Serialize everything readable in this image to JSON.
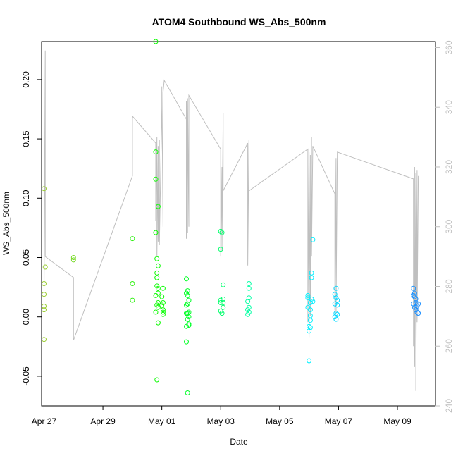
{
  "chart_data": {
    "type": "scatter",
    "title": "ATOM4 Southbound WS_Abs_500nm",
    "xlabel": "Date",
    "ylabel": "WS_Abs_500nm",
    "xlim": [
      "2017-04-26T22:00",
      "2017-05-10T07:00"
    ],
    "ylim": [
      -0.075,
      0.232
    ],
    "y2lim": [
      240,
      362
    ],
    "x_ticks": [
      {
        "date": "2017-04-27",
        "label": "Apr 27"
      },
      {
        "date": "2017-04-29",
        "label": "Apr 29"
      },
      {
        "date": "2017-05-01",
        "label": "May 01"
      },
      {
        "date": "2017-05-03",
        "label": "May 03"
      },
      {
        "date": "2017-05-05",
        "label": "May 05"
      },
      {
        "date": "2017-05-07",
        "label": "May 07"
      },
      {
        "date": "2017-05-09",
        "label": "May 09"
      }
    ],
    "y_ticks": [
      -0.05,
      0.0,
      0.05,
      0.1,
      0.15,
      0.2
    ],
    "y_tick_labels": [
      "-0.05",
      "0.00",
      "0.05",
      "0.10",
      "0.15",
      "0.20"
    ],
    "y2_ticks": [
      240,
      260,
      280,
      300,
      320,
      340,
      360
    ],
    "y2_tick_labels": [
      "240",
      "260",
      "280",
      "300",
      "320",
      "340",
      "360"
    ],
    "points": [
      {
        "t": "2017-04-27T00:00",
        "y": 0.108
      },
      {
        "t": "2017-04-27T00:00",
        "y": 0.028
      },
      {
        "t": "2017-04-27T00:00",
        "y": 0.019
      },
      {
        "t": "2017-04-27T00:00",
        "y": 0.009
      },
      {
        "t": "2017-04-27T00:00",
        "y": 0.006
      },
      {
        "t": "2017-04-27T00:00",
        "y": -0.019
      },
      {
        "t": "2017-04-27T01:00",
        "y": 0.042
      },
      {
        "t": "2017-04-28T00:00",
        "y": 0.05
      },
      {
        "t": "2017-04-28T00:00",
        "y": 0.048
      },
      {
        "t": "2017-04-30T00:00",
        "y": 0.066
      },
      {
        "t": "2017-04-30T00:00",
        "y": 0.028
      },
      {
        "t": "2017-04-30T00:00",
        "y": 0.014
      },
      {
        "t": "2017-04-30T19:00",
        "y": 0.232
      },
      {
        "t": "2017-04-30T19:00",
        "y": 0.139
      },
      {
        "t": "2017-04-30T19:00",
        "y": 0.116
      },
      {
        "t": "2017-04-30T19:00",
        "y": 0.071
      },
      {
        "t": "2017-04-30T19:00",
        "y": 0.018
      },
      {
        "t": "2017-04-30T19:00",
        "y": 0.004
      },
      {
        "t": "2017-04-30T20:00",
        "y": 0.049
      },
      {
        "t": "2017-04-30T20:00",
        "y": 0.037
      },
      {
        "t": "2017-04-30T20:00",
        "y": 0.033
      },
      {
        "t": "2017-04-30T20:00",
        "y": 0.026
      },
      {
        "t": "2017-04-30T20:00",
        "y": 0.01
      },
      {
        "t": "2017-04-30T20:00",
        "y": -0.053
      },
      {
        "t": "2017-04-30T21:00",
        "y": 0.093
      },
      {
        "t": "2017-04-30T21:00",
        "y": 0.043
      },
      {
        "t": "2017-04-30T21:00",
        "y": 0.024
      },
      {
        "t": "2017-04-30T21:00",
        "y": 0.02
      },
      {
        "t": "2017-04-30T21:00",
        "y": 0.012
      },
      {
        "t": "2017-04-30T21:00",
        "y": 0.008
      },
      {
        "t": "2017-04-30T21:00",
        "y": -0.005
      },
      {
        "t": "2017-05-01T00:00",
        "y": 0.017
      },
      {
        "t": "2017-05-01T00:00",
        "y": 0.01
      },
      {
        "t": "2017-05-01T01:00",
        "y": 0.024
      },
      {
        "t": "2017-05-01T01:00",
        "y": 0.012
      },
      {
        "t": "2017-05-01T01:00",
        "y": 0.006
      },
      {
        "t": "2017-05-01T01:00",
        "y": 0.004
      },
      {
        "t": "2017-05-01T01:00",
        "y": 0.002
      },
      {
        "t": "2017-05-01T20:00",
        "y": 0.032
      },
      {
        "t": "2017-05-01T20:00",
        "y": 0.02
      },
      {
        "t": "2017-05-01T20:00",
        "y": 0.01
      },
      {
        "t": "2017-05-01T20:00",
        "y": 0.003
      },
      {
        "t": "2017-05-01T20:00",
        "y": -0.008
      },
      {
        "t": "2017-05-01T20:00",
        "y": -0.021
      },
      {
        "t": "2017-05-01T21:00",
        "y": 0.022
      },
      {
        "t": "2017-05-01T21:00",
        "y": 0.018
      },
      {
        "t": "2017-05-01T21:00",
        "y": 0.011
      },
      {
        "t": "2017-05-01T21:00",
        "y": 0.003
      },
      {
        "t": "2017-05-01T21:00",
        "y": -0.002
      },
      {
        "t": "2017-05-01T22:00",
        "y": 0.014
      },
      {
        "t": "2017-05-01T22:00",
        "y": 0.004
      },
      {
        "t": "2017-05-01T22:00",
        "y": 0.0
      },
      {
        "t": "2017-05-01T22:00",
        "y": -0.006
      },
      {
        "t": "2017-05-01T22:00",
        "y": -0.007
      },
      {
        "t": "2017-05-01T21:00",
        "y": -0.064
      },
      {
        "t": "2017-05-03T00:00",
        "y": 0.072
      },
      {
        "t": "2017-05-03T00:00",
        "y": 0.057
      },
      {
        "t": "2017-05-03T00:00",
        "y": 0.014
      },
      {
        "t": "2017-05-03T00:00",
        "y": 0.012
      },
      {
        "t": "2017-05-03T00:00",
        "y": 0.005
      },
      {
        "t": "2017-05-03T01:00",
        "y": 0.071
      },
      {
        "t": "2017-05-03T01:00",
        "y": 0.003
      },
      {
        "t": "2017-05-03T02:00",
        "y": 0.027
      },
      {
        "t": "2017-05-03T02:00",
        "y": 0.015
      },
      {
        "t": "2017-05-03T02:00",
        "y": 0.012
      },
      {
        "t": "2017-05-03T02:00",
        "y": 0.008
      },
      {
        "t": "2017-05-03T22:00",
        "y": 0.013
      },
      {
        "t": "2017-05-03T22:00",
        "y": 0.006
      },
      {
        "t": "2017-05-03T22:00",
        "y": 0.002
      },
      {
        "t": "2017-05-03T23:00",
        "y": 0.028
      },
      {
        "t": "2017-05-03T23:00",
        "y": 0.024
      },
      {
        "t": "2017-05-03T23:00",
        "y": 0.016
      },
      {
        "t": "2017-05-03T23:00",
        "y": 0.008
      },
      {
        "t": "2017-05-03T23:00",
        "y": 0.004
      },
      {
        "t": "2017-05-05T23:00",
        "y": 0.018
      },
      {
        "t": "2017-05-05T23:00",
        "y": 0.016
      },
      {
        "t": "2017-05-05T23:00",
        "y": 0.008
      },
      {
        "t": "2017-05-06T00:00",
        "y": -0.008
      },
      {
        "t": "2017-05-06T00:00",
        "y": -0.012
      },
      {
        "t": "2017-05-06T00:00",
        "y": -0.037
      },
      {
        "t": "2017-05-06T01:00",
        "y": 0.012
      },
      {
        "t": "2017-05-06T01:00",
        "y": 0.006
      },
      {
        "t": "2017-05-06T01:00",
        "y": 0.001
      },
      {
        "t": "2017-05-06T01:00",
        "y": -0.003
      },
      {
        "t": "2017-05-06T01:00",
        "y": -0.009
      },
      {
        "t": "2017-05-06T02:00",
        "y": 0.037
      },
      {
        "t": "2017-05-06T02:00",
        "y": 0.033
      },
      {
        "t": "2017-05-06T02:00",
        "y": 0.015
      },
      {
        "t": "2017-05-06T03:00",
        "y": 0.065
      },
      {
        "t": "2017-05-06T03:00",
        "y": 0.013
      },
      {
        "t": "2017-05-06T21:00",
        "y": 0.019
      },
      {
        "t": "2017-05-06T21:00",
        "y": 0.011
      },
      {
        "t": "2017-05-06T21:00",
        "y": 0.0
      },
      {
        "t": "2017-05-06T22:00",
        "y": 0.024
      },
      {
        "t": "2017-05-06T22:00",
        "y": 0.016
      },
      {
        "t": "2017-05-06T22:00",
        "y": 0.003
      },
      {
        "t": "2017-05-06T22:00",
        "y": -0.002
      },
      {
        "t": "2017-05-06T23:00",
        "y": 0.014
      },
      {
        "t": "2017-05-06T23:00",
        "y": 0.01
      },
      {
        "t": "2017-05-06T23:00",
        "y": 0.002
      },
      {
        "t": "2017-05-09T13:00",
        "y": 0.024
      },
      {
        "t": "2017-05-09T13:00",
        "y": 0.018
      },
      {
        "t": "2017-05-09T13:00",
        "y": 0.011
      },
      {
        "t": "2017-05-09T14:00",
        "y": 0.02
      },
      {
        "t": "2017-05-09T14:00",
        "y": 0.017
      },
      {
        "t": "2017-05-09T14:00",
        "y": 0.008
      },
      {
        "t": "2017-05-09T15:00",
        "y": 0.015
      },
      {
        "t": "2017-05-09T15:00",
        "y": 0.012
      },
      {
        "t": "2017-05-09T15:00",
        "y": 0.006
      },
      {
        "t": "2017-05-09T16:00",
        "y": 0.009
      },
      {
        "t": "2017-05-09T16:00",
        "y": 0.004
      },
      {
        "t": "2017-05-09T17:00",
        "y": 0.011
      },
      {
        "t": "2017-05-09T17:00",
        "y": 0.003
      }
    ],
    "line_series": {
      "axis": "right",
      "color": "#bfbfbf",
      "points": [
        [
          "2017-04-27T00:00",
          278
        ],
        [
          "2017-04-27T01:00",
          359
        ],
        [
          "2017-04-27T01:00",
          290
        ],
        [
          "2017-04-28T00:00",
          283
        ],
        [
          "2017-04-28T00:00",
          262
        ],
        [
          "2017-04-30T00:00",
          317
        ],
        [
          "2017-04-30T00:00",
          337
        ],
        [
          "2017-04-30T19:00",
          328
        ],
        [
          "2017-04-30T19:00",
          302
        ],
        [
          "2017-04-30T20:00",
          330
        ],
        [
          "2017-04-30T20:00",
          290
        ],
        [
          "2017-04-30T21:00",
          327
        ],
        [
          "2017-04-30T21:00",
          295
        ],
        [
          "2017-04-30T22:00",
          329
        ],
        [
          "2017-04-30T22:00",
          294
        ],
        [
          "2017-05-01T00:00",
          340
        ],
        [
          "2017-05-01T00:00",
          347
        ],
        [
          "2017-05-01T01:00",
          300
        ],
        [
          "2017-05-01T01:00",
          345
        ],
        [
          "2017-05-01T02:00",
          349
        ],
        [
          "2017-05-01T20:00",
          336
        ],
        [
          "2017-05-01T20:00",
          296
        ],
        [
          "2017-05-01T20:00",
          342
        ],
        [
          "2017-05-01T21:00",
          298
        ],
        [
          "2017-05-01T21:00",
          343
        ],
        [
          "2017-05-01T22:00",
          300
        ],
        [
          "2017-05-01T22:00",
          344
        ],
        [
          "2017-05-03T00:00",
          326
        ],
        [
          "2017-05-03T00:00",
          290
        ],
        [
          "2017-05-03T01:00",
          320
        ],
        [
          "2017-05-03T01:00",
          292
        ],
        [
          "2017-05-03T02:00",
          338
        ],
        [
          "2017-05-03T02:00",
          312
        ],
        [
          "2017-05-03T22:00",
          328
        ],
        [
          "2017-05-03T22:00",
          287
        ],
        [
          "2017-05-03T23:00",
          329
        ],
        [
          "2017-05-03T23:00",
          312
        ],
        [
          "2017-05-05T23:00",
          326
        ],
        [
          "2017-05-05T23:00",
          268
        ],
        [
          "2017-05-06T00:00",
          325
        ],
        [
          "2017-05-06T00:00",
          263
        ],
        [
          "2017-05-06T01:00",
          324
        ],
        [
          "2017-05-06T01:00",
          270
        ],
        [
          "2017-05-06T02:00",
          330
        ],
        [
          "2017-05-06T02:00",
          290
        ],
        [
          "2017-05-06T03:00",
          327
        ],
        [
          "2017-05-06T21:00",
          311
        ],
        [
          "2017-05-06T21:00",
          272
        ],
        [
          "2017-05-06T22:00",
          323
        ],
        [
          "2017-05-06T22:00",
          271
        ],
        [
          "2017-05-06T23:00",
          325
        ],
        [
          "2017-05-09T13:00",
          316
        ],
        [
          "2017-05-09T13:00",
          260
        ],
        [
          "2017-05-09T14:00",
          320
        ],
        [
          "2017-05-09T14:00",
          253
        ],
        [
          "2017-05-09T15:00",
          318
        ],
        [
          "2017-05-09T15:00",
          245
        ],
        [
          "2017-05-09T16:00",
          319
        ],
        [
          "2017-05-09T16:00",
          268
        ],
        [
          "2017-05-09T17:00",
          317
        ]
      ]
    },
    "color_gradient": [
      "#9ACD32",
      "#00FF00",
      "#00FFFF",
      "#1E90FF"
    ],
    "grid": false,
    "legend": "none"
  }
}
